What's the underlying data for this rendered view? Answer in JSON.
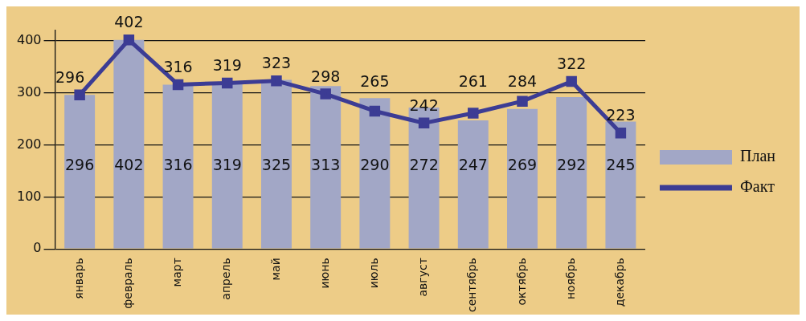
{
  "chart_data": {
    "type": "bar",
    "categories": [
      "январь",
      "февраль",
      "март",
      "апрель",
      "май",
      "июнь",
      "июль",
      "август",
      "сентябрь",
      "октябрь",
      "ноябрь",
      "декабрь"
    ],
    "series": [
      {
        "name": "План",
        "color": "#a2a7c6",
        "values": [
          296,
          402,
          316,
          319,
          325,
          313,
          290,
          272,
          247,
          269,
          292,
          245
        ]
      },
      {
        "name": "Факт",
        "type": "line",
        "color": "#3c3c94",
        "values": [
          296,
          402,
          316,
          319,
          323,
          298,
          265,
          242,
          261,
          284,
          322,
          223
        ]
      }
    ],
    "ylim": [
      0,
      420
    ],
    "yticks": [
      0,
      100,
      200,
      300,
      400
    ],
    "grid": "y",
    "legend": "right",
    "marker": "square",
    "line_style": "solid",
    "data_labels": true
  }
}
